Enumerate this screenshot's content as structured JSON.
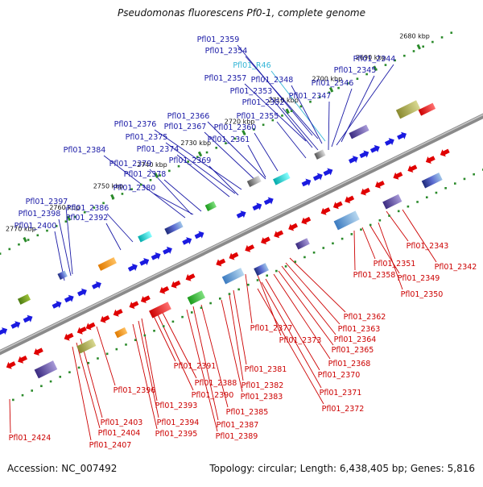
{
  "title": "Pseudomonas fluorescens Pf0-1, complete genome",
  "footer": {
    "accession": "Accession: NC_007492",
    "summary": "Topology: circular; Length: 6,438,405 bp; Genes: 5,816"
  },
  "colors": {
    "forward_label": "#1a1aa6",
    "reverse_label": "#cc0000",
    "rna_label": "#33b5d6",
    "backbone": "#8a8a8a",
    "tick": "#2a8a2a"
  },
  "scale_ticks": [
    "2680 kbp",
    "2690 kbp",
    "2700 kbp",
    "2710 kbp",
    "2720 kbp",
    "2730 kbp",
    "2740 kbp",
    "2750 kbp",
    "2760 kbp",
    "2770 kbp"
  ],
  "upper_labels": [
    {
      "text": "Pfl01_2359",
      "type": "gene"
    },
    {
      "text": "Pfl01_2354",
      "type": "gene"
    },
    {
      "text": "Pfl01_R46",
      "type": "rna"
    },
    {
      "text": "Pfl01_2357",
      "type": "gene"
    },
    {
      "text": "Pfl01_2348",
      "type": "gene"
    },
    {
      "text": "Pfl01_2353",
      "type": "gene"
    },
    {
      "text": "Pfl01_2352",
      "type": "gene"
    },
    {
      "text": "Pfl01_2344",
      "type": "gene"
    },
    {
      "text": "Pfl01_2345",
      "type": "gene"
    },
    {
      "text": "Pfl01_2346",
      "type": "gene"
    },
    {
      "text": "Pfl01_2347",
      "type": "gene"
    },
    {
      "text": "Pfl01_2366",
      "type": "gene"
    },
    {
      "text": "Pfl01_2355",
      "type": "gene"
    },
    {
      "text": "Pfl01_2376",
      "type": "gene"
    },
    {
      "text": "Pfl01_2367",
      "type": "gene"
    },
    {
      "text": "Pfl01_2360",
      "type": "gene"
    },
    {
      "text": "Pfl01_2375",
      "type": "gene"
    },
    {
      "text": "Pfl01_2361",
      "type": "gene"
    },
    {
      "text": "Pfl01_2374",
      "type": "gene"
    },
    {
      "text": "Pfl01_2384",
      "type": "gene"
    },
    {
      "text": "Pfl01_2369",
      "type": "gene"
    },
    {
      "text": "Pfl01_2379",
      "type": "gene"
    },
    {
      "text": "Pfl01_2378",
      "type": "gene"
    },
    {
      "text": "Pfl01_2380",
      "type": "gene"
    },
    {
      "text": "Pfl01_2397",
      "type": "gene"
    },
    {
      "text": "Pfl01_2386",
      "type": "gene"
    },
    {
      "text": "Pfl01_2398",
      "type": "gene"
    },
    {
      "text": "Pfl01_2392",
      "type": "gene"
    },
    {
      "text": "Pfl01_2400",
      "type": "gene"
    }
  ],
  "lower_labels": [
    {
      "text": "Pfl01_2343"
    },
    {
      "text": "Pfl01_2342"
    },
    {
      "text": "Pfl01_2351"
    },
    {
      "text": "Pfl01_2358"
    },
    {
      "text": "Pfl01_2349"
    },
    {
      "text": "Pfl01_2350"
    },
    {
      "text": "Pfl01_2362"
    },
    {
      "text": "Pfl01_2363"
    },
    {
      "text": "Pfl01_2377"
    },
    {
      "text": "Pfl01_2364"
    },
    {
      "text": "Pfl01_2373"
    },
    {
      "text": "Pfl01_2365"
    },
    {
      "text": "Pfl01_2368"
    },
    {
      "text": "Pfl01_2391"
    },
    {
      "text": "Pfl01_2381"
    },
    {
      "text": "Pfl01_2370"
    },
    {
      "text": "Pfl01_2388"
    },
    {
      "text": "Pfl01_2382"
    },
    {
      "text": "Pfl01_2396"
    },
    {
      "text": "Pfl01_2390"
    },
    {
      "text": "Pfl01_2371"
    },
    {
      "text": "Pfl01_2383"
    },
    {
      "text": "Pfl01_2393"
    },
    {
      "text": "Pfl01_2372"
    },
    {
      "text": "Pfl01_2385"
    },
    {
      "text": "Pfl01_2403"
    },
    {
      "text": "Pfl01_2394"
    },
    {
      "text": "Pfl01_2387"
    },
    {
      "text": "Pfl01_2404"
    },
    {
      "text": "Pfl01_2395"
    },
    {
      "text": "Pfl01_2389"
    },
    {
      "text": "Pfl01_2424"
    },
    {
      "text": "Pfl01_2407"
    }
  ]
}
